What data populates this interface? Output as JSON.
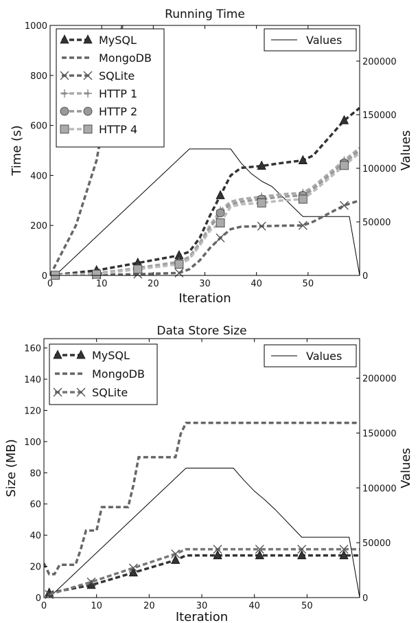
{
  "chart_data": [
    {
      "type": "line",
      "title": "Running Time",
      "xlabel": "Iteration",
      "ylabel": "Time (s)",
      "y2label": "Values",
      "xlim": [
        0,
        60
      ],
      "ylim": [
        0,
        1000
      ],
      "y2lim": [
        0,
        233333
      ],
      "xticks": [
        0,
        10,
        20,
        30,
        40,
        50
      ],
      "yticks": [
        0,
        200,
        400,
        600,
        800,
        1000
      ],
      "y2ticks": [
        0,
        50000,
        100000,
        150000,
        200000
      ],
      "legend_placement": "top-left",
      "legend2_placement": "top-right",
      "series": [
        {
          "name": "MySQL",
          "color": "#333333",
          "marker": "triangle",
          "x": [
            0,
            9,
            17,
            25,
            27,
            29,
            31,
            33,
            35,
            37,
            41,
            45,
            49,
            51,
            57,
            60
          ],
          "y": [
            0,
            20,
            50,
            80,
            95,
            150,
            240,
            320,
            400,
            430,
            438,
            450,
            460,
            480,
            620,
            670
          ],
          "markers_x": [
            9,
            17,
            25,
            33,
            41,
            49,
            57
          ]
        },
        {
          "name": "MongoDB",
          "color": "#666666",
          "marker": "none",
          "x": [
            0,
            5,
            9,
            12,
            14
          ],
          "y": [
            0,
            200,
            460,
            800,
            1000
          ]
        },
        {
          "name": "SQLite",
          "color": "#666666",
          "marker": "x",
          "x": [
            0,
            9,
            17,
            25,
            27,
            29,
            31,
            33,
            35,
            37,
            41,
            45,
            49,
            51,
            57,
            60
          ],
          "y": [
            0,
            2,
            5,
            10,
            25,
            60,
            110,
            150,
            185,
            195,
            197,
            199,
            200,
            215,
            280,
            300
          ],
          "markers_x": [
            1,
            9,
            17,
            25,
            33,
            41,
            49,
            57
          ]
        },
        {
          "name": "HTTP 1",
          "color": "#aaaaaa",
          "marker": "plus",
          "x": [
            0,
            9,
            17,
            25,
            27,
            29,
            31,
            33,
            35,
            37,
            41,
            45,
            49,
            51,
            57,
            60
          ],
          "y": [
            0,
            8,
            30,
            55,
            75,
            130,
            200,
            260,
            295,
            305,
            315,
            325,
            330,
            355,
            460,
            510
          ],
          "markers_x": [
            9,
            17,
            25,
            33,
            41,
            49,
            57
          ]
        },
        {
          "name": "HTTP 2",
          "color": "#999999",
          "marker": "circle",
          "x": [
            0,
            9,
            17,
            25,
            27,
            29,
            31,
            33,
            35,
            37,
            41,
            45,
            49,
            51,
            57,
            60
          ],
          "y": [
            0,
            6,
            28,
            50,
            70,
            125,
            190,
            250,
            285,
            295,
            305,
            315,
            320,
            345,
            450,
            500
          ],
          "markers_x": [
            1,
            9,
            17,
            25,
            33,
            41,
            49,
            57
          ]
        },
        {
          "name": "HTTP 4",
          "color": "#bbbbbb",
          "marker": "square",
          "x": [
            0,
            9,
            17,
            25,
            27,
            29,
            31,
            33,
            35,
            37,
            41,
            45,
            49,
            51,
            57,
            60
          ],
          "y": [
            0,
            5,
            25,
            45,
            65,
            120,
            180,
            210,
            275,
            285,
            290,
            300,
            305,
            335,
            440,
            490
          ],
          "markers_x": [
            1,
            9,
            17,
            25,
            33,
            41,
            49,
            57
          ]
        }
      ],
      "values_series": {
        "name": "Values",
        "color": "#000000",
        "x": [
          0,
          1,
          27,
          35,
          37,
          39,
          41,
          43,
          49,
          58,
          60
        ],
        "y": [
          0,
          0,
          118000,
          118000,
          105000,
          95000,
          88000,
          83000,
          55000,
          55000,
          0
        ]
      }
    },
    {
      "type": "line",
      "title": "Data Store Size",
      "xlabel": "Iteration",
      "ylabel": "Size (MB)",
      "y2label": "Values",
      "xlim": [
        0,
        60
      ],
      "ylim": [
        0,
        166
      ],
      "y2lim": [
        0,
        236000
      ],
      "xticks": [
        0,
        10,
        20,
        30,
        40,
        50
      ],
      "yticks": [
        0,
        20,
        40,
        60,
        80,
        100,
        120,
        140,
        160
      ],
      "y2ticks": [
        0,
        50000,
        100000,
        150000,
        200000
      ],
      "legend_placement": "top-left",
      "legend2_placement": "top-right",
      "series": [
        {
          "name": "MySQL",
          "color": "#333333",
          "marker": "triangle",
          "x": [
            1,
            9,
            17,
            25,
            27,
            33,
            41,
            49,
            57,
            60
          ],
          "y": [
            3,
            8,
            16,
            24,
            27,
            27,
            27,
            27,
            27,
            27
          ],
          "markers_x": [
            1,
            9,
            17,
            25,
            33,
            41,
            49,
            57
          ]
        },
        {
          "name": "MongoDB",
          "color": "#666666",
          "marker": "none",
          "x": [
            0,
            1,
            2,
            3,
            4,
            6,
            7,
            8,
            10,
            11,
            12,
            16,
            17,
            18,
            19,
            25,
            26,
            27,
            60
          ],
          "y": [
            22,
            15,
            15,
            21,
            21,
            21,
            31,
            43,
            43,
            58,
            58,
            58,
            72,
            90,
            90,
            90,
            105,
            112,
            112
          ]
        },
        {
          "name": "SQLite",
          "color": "#777777",
          "marker": "x",
          "x": [
            1,
            9,
            17,
            25,
            27,
            33,
            41,
            49,
            57,
            60
          ],
          "y": [
            2,
            10,
            19,
            28,
            31,
            31,
            31,
            31,
            31,
            31
          ],
          "markers_x": [
            1,
            9,
            17,
            25,
            33,
            41,
            49,
            57
          ]
        }
      ],
      "values_series": {
        "name": "Values",
        "color": "#000000",
        "x": [
          0,
          1,
          27,
          36,
          38,
          40,
          42,
          44,
          46,
          49,
          58,
          60
        ],
        "y": [
          0,
          0,
          118000,
          118000,
          107000,
          97000,
          89000,
          80000,
          70000,
          55000,
          55000,
          0
        ]
      }
    }
  ]
}
